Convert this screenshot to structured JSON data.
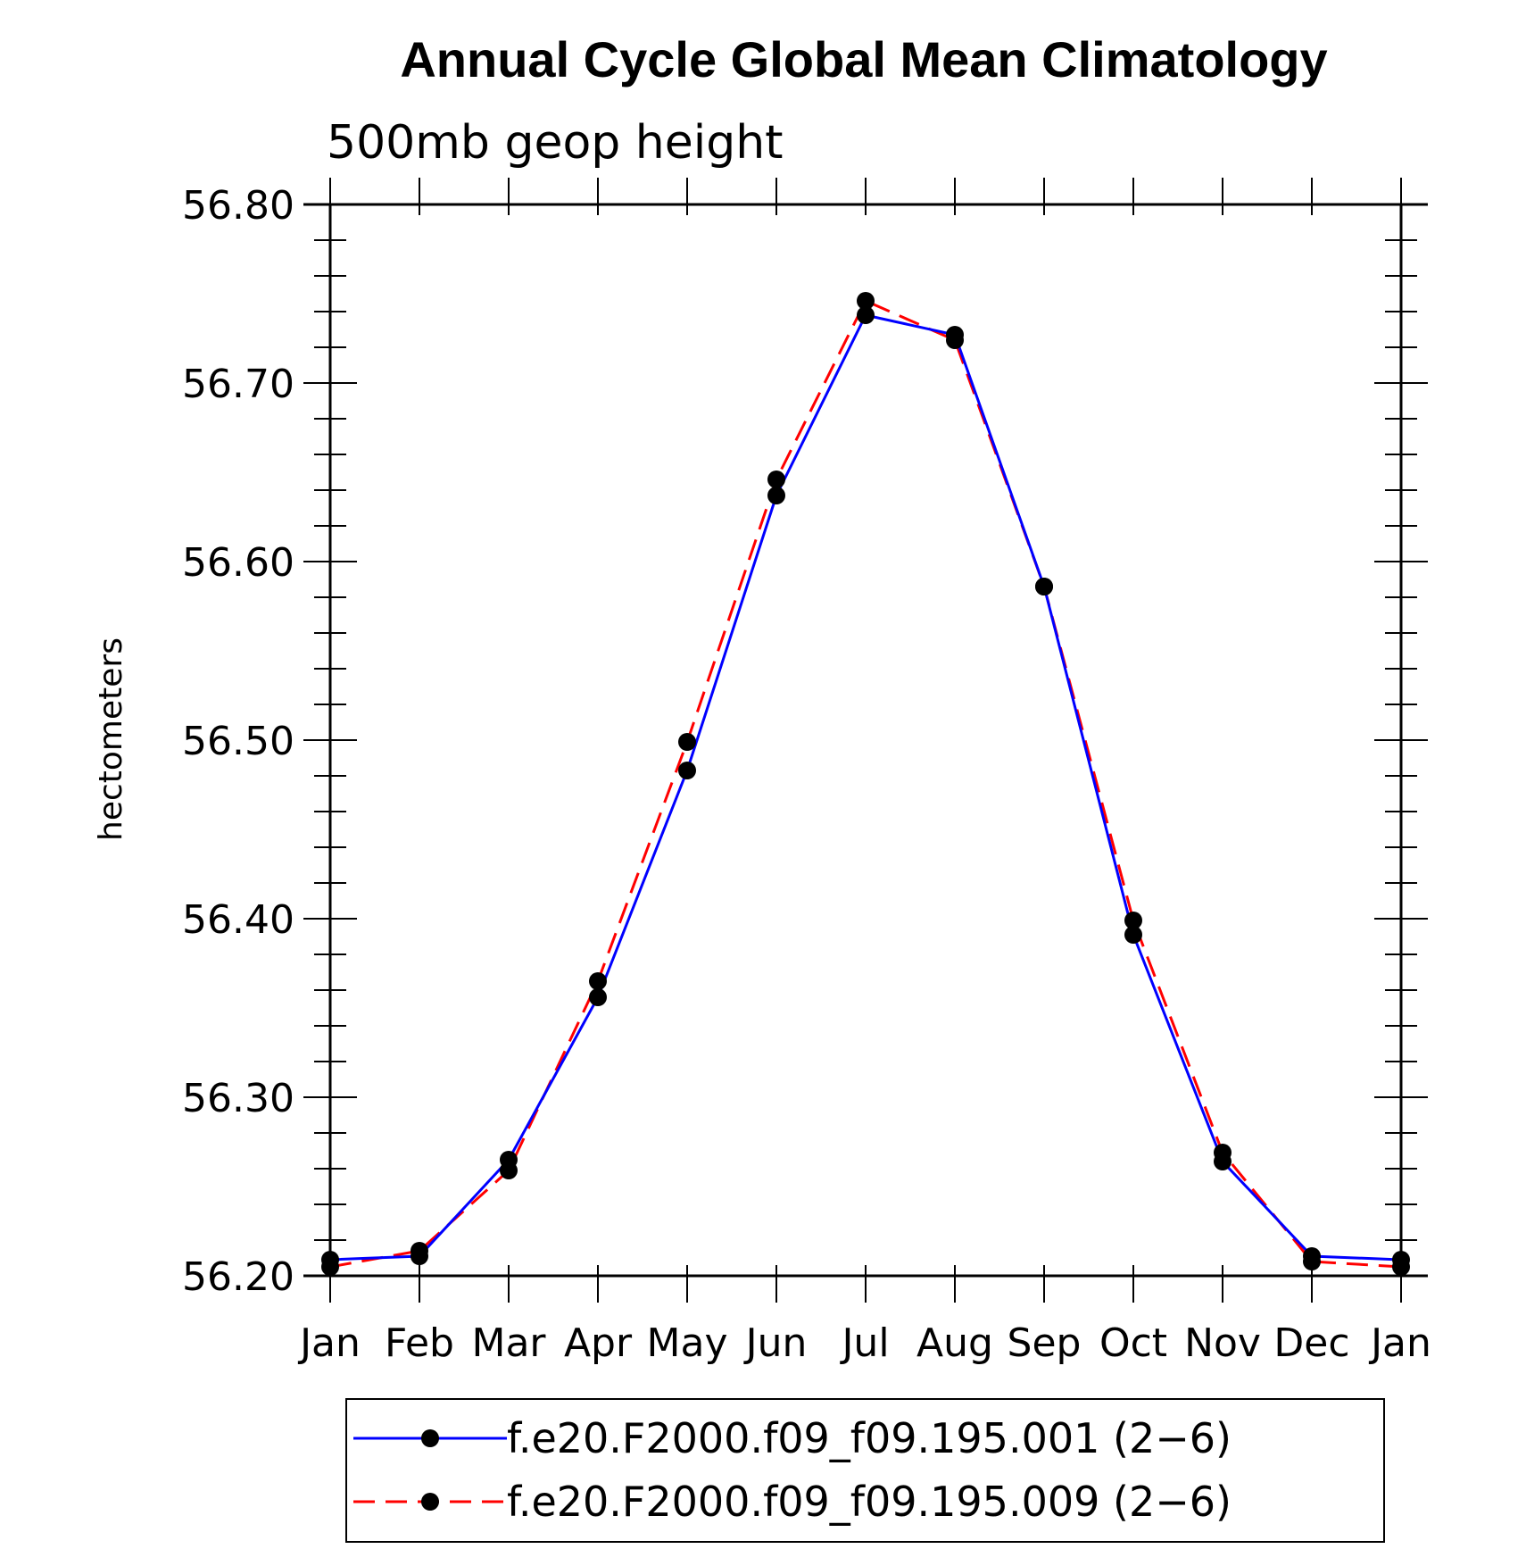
{
  "chart_data": {
    "type": "line",
    "title": "Annual Cycle Global Mean Climatology",
    "subtitle": "500mb geop height",
    "xlabel": "",
    "ylabel": "hectometers",
    "categories": [
      "Jan",
      "Feb",
      "Mar",
      "Apr",
      "May",
      "Jun",
      "Jul",
      "Aug",
      "Sep",
      "Oct",
      "Nov",
      "Dec",
      "Jan"
    ],
    "ylim": [
      56.2,
      56.8
    ],
    "yticks": [
      "56.80",
      "56.70",
      "56.60",
      "56.50",
      "56.40",
      "56.30",
      "56.20"
    ],
    "grid": false,
    "legend_position": "bottom",
    "series": [
      {
        "name": "f.e20.F2000.f09_f09.195.001 (2−6)",
        "color": "#0000ff",
        "style": "solid",
        "values": [
          56.209,
          56.211,
          56.265,
          56.356,
          56.483,
          56.637,
          56.738,
          56.727,
          56.586,
          56.391,
          56.264,
          56.211,
          56.209
        ]
      },
      {
        "name": "f.e20.F2000.f09_f09.195.009 (2−6)",
        "color": "#ff0000",
        "style": "dashed",
        "values": [
          56.205,
          56.214,
          56.259,
          56.365,
          56.499,
          56.646,
          56.746,
          56.724,
          56.586,
          56.399,
          56.269,
          56.208,
          56.205
        ]
      }
    ]
  }
}
